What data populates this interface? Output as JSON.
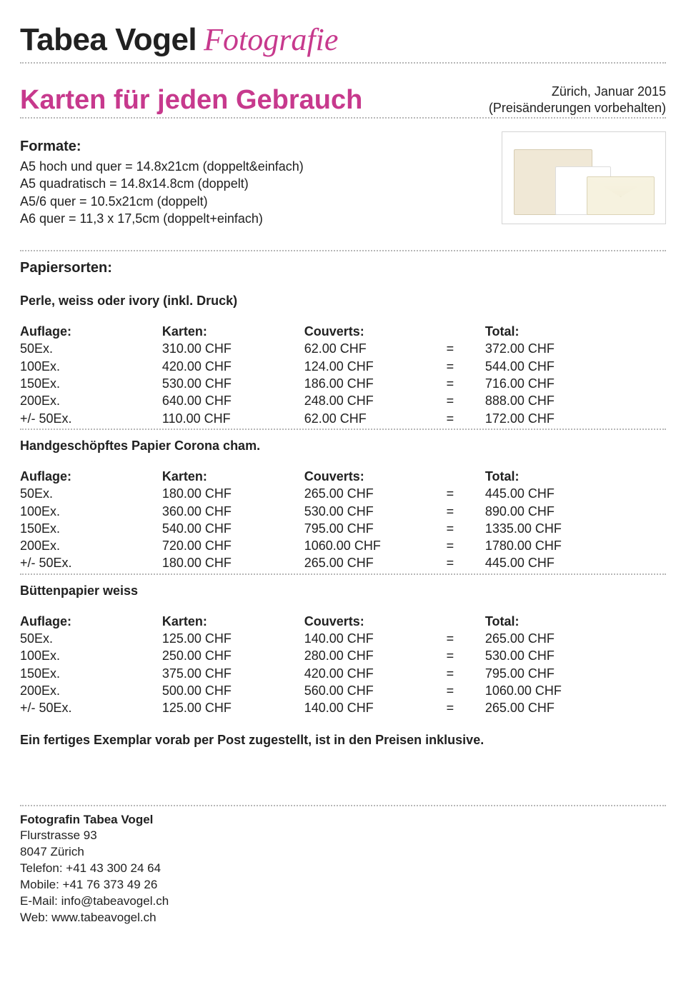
{
  "logo": {
    "name": "Tabea Vogel",
    "sub": "Fotografie"
  },
  "header": {
    "title": "Karten für jeden Gebrauch",
    "location_date": "Zürich, Januar 2015",
    "disclaimer": "(Preisänderungen vorbehalten)"
  },
  "formats": {
    "title": "Formate:",
    "lines": [
      "A5 hoch und quer = 14.8x21cm (doppelt&einfach)",
      "A5 quadratisch = 14.8x14.8cm (doppelt)",
      "A5/6 quer = 10.5x21cm (doppelt)",
      "A6 quer = 11,3 x 17,5cm (doppelt+einfach)"
    ]
  },
  "paper_types_title": "Papiersorten:",
  "headers": {
    "auflage": "Auflage:",
    "karten": "Karten:",
    "couverts": "Couverts:",
    "total": "Total:"
  },
  "tables": [
    {
      "title": "Perle, weiss oder ivory (inkl. Druck)",
      "rows": [
        {
          "a": "50Ex.",
          "k": "310.00 CHF",
          "c": "62.00 CHF",
          "t": "372.00 CHF"
        },
        {
          "a": "100Ex.",
          "k": "420.00 CHF",
          "c": "124.00 CHF",
          "t": "544.00 CHF"
        },
        {
          "a": "150Ex.",
          "k": "530.00 CHF",
          "c": "186.00 CHF",
          "t": "716.00 CHF"
        },
        {
          "a": "200Ex.",
          "k": "640.00 CHF",
          "c": "248.00 CHF",
          "t": "888.00 CHF"
        },
        {
          "a": "+/- 50Ex.",
          "k": "110.00 CHF",
          "c": "62.00 CHF",
          "t": "172.00 CHF"
        }
      ]
    },
    {
      "title": "Handgeschöpftes Papier Corona cham.",
      "rows": [
        {
          "a": "50Ex.",
          "k": "180.00 CHF",
          "c": "265.00 CHF",
          "t": "445.00 CHF"
        },
        {
          "a": "100Ex.",
          "k": "360.00 CHF",
          "c": "530.00 CHF",
          "t": "890.00 CHF"
        },
        {
          "a": "150Ex.",
          "k": "540.00 CHF",
          "c": "795.00 CHF",
          "t": "1335.00 CHF"
        },
        {
          "a": "200Ex.",
          "k": "720.00 CHF",
          "c": "1060.00 CHF",
          "t": "1780.00 CHF"
        },
        {
          "a": "+/- 50Ex.",
          "k": "180.00 CHF",
          "c": "265.00 CHF",
          "t": "445.00 CHF"
        }
      ]
    },
    {
      "title": "Büttenpapier weiss",
      "rows": [
        {
          "a": "50Ex.",
          "k": "125.00 CHF",
          "c": "140.00 CHF",
          "t": "265.00 CHF"
        },
        {
          "a": "100Ex.",
          "k": "250.00 CHF",
          "c": "280.00 CHF",
          "t": "530.00 CHF"
        },
        {
          "a": "150Ex.",
          "k": "375.00 CHF",
          "c": "420.00 CHF",
          "t": "795.00 CHF"
        },
        {
          "a": "200Ex.",
          "k": "500.00 CHF",
          "c": "560.00 CHF",
          "t": "1060.00 CHF"
        },
        {
          "a": "+/- 50Ex.",
          "k": "125.00 CHF",
          "c": "140.00 CHF",
          "t": "265.00 CHF"
        }
      ]
    }
  ],
  "eq": "=",
  "note": "Ein fertiges Exemplar vorab per Post zugestellt, ist in den Preisen inklusive.",
  "footer": {
    "name": "Fotografin Tabea Vogel",
    "street": "Flurstrasse 93",
    "city": "8047 Zürich",
    "tel": "Telefon: +41 43 300 24 64",
    "mobile": "Mobile: +41 76 373 49 26",
    "email": "E-Mail: info@tabeavogel.ch",
    "web": "Web: www.tabeavogel.ch"
  },
  "colors": {
    "brand": "#c7398d",
    "text": "#212121",
    "dotted": "#b7b7b7"
  }
}
